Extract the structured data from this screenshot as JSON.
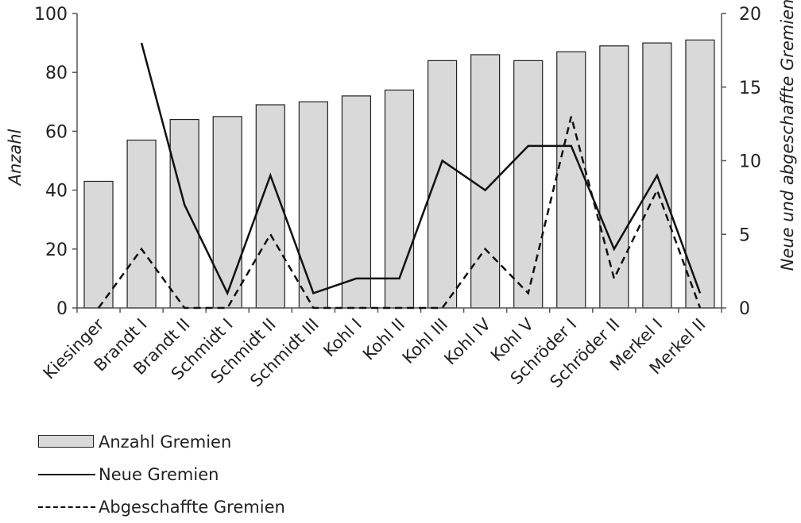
{
  "chart_data": {
    "type": "bar",
    "categories": [
      "Kiesinger",
      "Brandt I",
      "Brandt II",
      "Schmidt I",
      "Schmidt II",
      "Schmidt III",
      "Kohl I",
      "Kohl II",
      "Kohl III",
      "Kohl IV",
      "Kohl V",
      "Schröder I",
      "Schröder II",
      "Merkel I",
      "Merkel II"
    ],
    "series": [
      {
        "name": "Anzahl Gremien",
        "type": "bar",
        "axis": "left",
        "values": [
          43,
          57,
          64,
          65,
          69,
          70,
          72,
          74,
          84,
          86,
          84,
          87,
          89,
          90,
          91
        ],
        "color": "#d9d9d9"
      },
      {
        "name": "Neue Gremien",
        "type": "line",
        "style": "solid",
        "axis": "right",
        "values": [
          null,
          18,
          7,
          1,
          9,
          1,
          2,
          2,
          10,
          8,
          11,
          11,
          4,
          9,
          1
        ],
        "color": "#111111"
      },
      {
        "name": "Abgeschaffte Gremien",
        "type": "line",
        "style": "dashed",
        "axis": "right",
        "values": [
          0,
          4,
          0,
          0,
          5,
          0,
          0,
          0,
          0,
          4,
          1,
          13,
          2,
          8,
          0
        ],
        "color": "#111111"
      }
    ],
    "ylabel": "Anzahl",
    "y2label": "Neue und abgeschaffte Gremien",
    "ylim": [
      0,
      100
    ],
    "y2lim": [
      0,
      20
    ],
    "yticks": [
      "0",
      "20",
      "40",
      "60",
      "80",
      "100"
    ],
    "y2ticks": [
      "0",
      "5",
      "10",
      "15",
      "20"
    ],
    "grid": false,
    "legend_position": "bottom-left"
  }
}
